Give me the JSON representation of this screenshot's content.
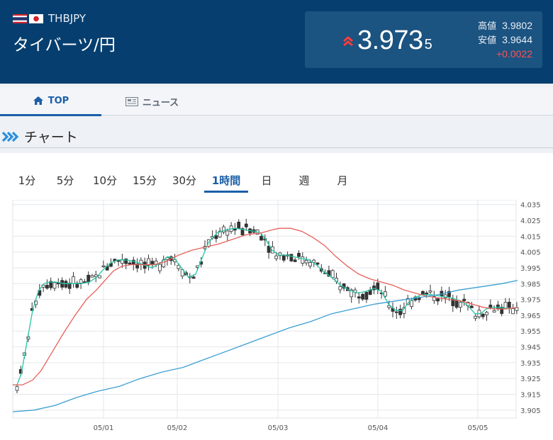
{
  "header": {
    "pair_code": "THBJPY",
    "pair_name": "タイバーツ/円",
    "price_main": "3.973",
    "price_sub": "5",
    "high_label": "高値",
    "high_value": "3.9802",
    "low_label": "安値",
    "low_value": "3.9644",
    "change": "+0.0022",
    "change_color": "#ff5252",
    "up_icon": "double-chevron-up-icon"
  },
  "tabs": [
    {
      "label": "TOP",
      "icon": "home-icon",
      "active": true
    },
    {
      "label": "ニュース",
      "icon": "newspaper-icon",
      "active": false
    }
  ],
  "section": {
    "title": "チャート",
    "icon": "double-chevron-right-icon"
  },
  "periods": [
    "1分",
    "5分",
    "10分",
    "15分",
    "30分",
    "1時間",
    "日",
    "週",
    "月"
  ],
  "active_period": "1時間",
  "chart_data": {
    "type": "candlestick",
    "ylim": [
      3.9,
      4.038
    ],
    "y_ticks": [
      "4.035",
      "4.025",
      "4.015",
      "4.005",
      "3.995",
      "3.985",
      "3.975",
      "3.965",
      "3.955",
      "3.945",
      "3.935",
      "3.925",
      "3.915",
      "3.905"
    ],
    "x_ticks": [
      "05/01",
      "05/02",
      "05/03",
      "05/04",
      "05/05"
    ],
    "ma_colors": {
      "short": "#26c6a6",
      "mid": "#e8605a",
      "long": "#3a9fd0"
    },
    "series": [
      {
        "name": "short",
        "points": [
          [
            0,
            3.921
          ],
          [
            6,
            3.921
          ],
          [
            12,
            3.928
          ],
          [
            20,
            3.948
          ],
          [
            28,
            3.968
          ],
          [
            36,
            3.98
          ],
          [
            44,
            3.985
          ],
          [
            52,
            3.986
          ],
          [
            62,
            3.986
          ],
          [
            72,
            3.985
          ],
          [
            84,
            3.985
          ],
          [
            96,
            3.985
          ],
          [
            108,
            3.986
          ],
          [
            118,
            3.989
          ],
          [
            128,
            3.994
          ],
          [
            138,
            3.998
          ],
          [
            148,
            4.0
          ],
          [
            160,
            4.0
          ],
          [
            172,
            3.999
          ],
          [
            184,
            3.997
          ],
          [
            196,
            3.995
          ],
          [
            208,
            3.998
          ],
          [
            218,
            4.002
          ],
          [
            228,
            4.001
          ],
          [
            238,
            3.995
          ],
          [
            248,
            3.989
          ],
          [
            258,
            3.991
          ],
          [
            266,
            4.0
          ],
          [
            276,
            4.011
          ],
          [
            288,
            4.017
          ],
          [
            300,
            4.019
          ],
          [
            314,
            4.02
          ],
          [
            328,
            4.019
          ],
          [
            342,
            4.018
          ],
          [
            350,
            4.017
          ],
          [
            358,
            4.012
          ],
          [
            366,
            4.006
          ],
          [
            376,
            4.003
          ],
          [
            386,
            4.003
          ],
          [
            396,
            4.002
          ],
          [
            406,
            4.001
          ],
          [
            418,
            4.0
          ],
          [
            428,
            3.997
          ],
          [
            440,
            3.992
          ],
          [
            450,
            3.989
          ],
          [
            462,
            3.984
          ],
          [
            474,
            3.981
          ],
          [
            486,
            3.979
          ],
          [
            498,
            3.98
          ],
          [
            510,
            3.982
          ],
          [
            520,
            3.98
          ],
          [
            530,
            3.972
          ],
          [
            540,
            3.968
          ],
          [
            550,
            3.968
          ],
          [
            558,
            3.973
          ],
          [
            566,
            3.976
          ],
          [
            576,
            3.978
          ],
          [
            590,
            3.978
          ],
          [
            604,
            3.977
          ],
          [
            618,
            3.976
          ],
          [
            632,
            3.974
          ],
          [
            642,
            3.971
          ],
          [
            652,
            3.966
          ],
          [
            660,
            3.966
          ],
          [
            668,
            3.969
          ],
          [
            678,
            3.97
          ],
          [
            690,
            3.97
          ],
          [
            700,
            3.969
          ],
          [
            712,
            3.97
          ]
        ]
      },
      {
        "name": "mid",
        "points": [
          [
            0,
            3.921
          ],
          [
            14,
            3.921
          ],
          [
            28,
            3.924
          ],
          [
            40,
            3.93
          ],
          [
            56,
            3.942
          ],
          [
            72,
            3.954
          ],
          [
            88,
            3.965
          ],
          [
            104,
            3.975
          ],
          [
            118,
            3.981
          ],
          [
            130,
            3.987
          ],
          [
            142,
            3.993
          ],
          [
            154,
            3.996
          ],
          [
            168,
            3.997
          ],
          [
            184,
            3.997
          ],
          [
            200,
            3.997
          ],
          [
            216,
            3.999
          ],
          [
            234,
            4.003
          ],
          [
            252,
            4.006
          ],
          [
            270,
            4.008
          ],
          [
            290,
            4.01
          ],
          [
            310,
            4.013
          ],
          [
            330,
            4.016
          ],
          [
            350,
            4.017
          ],
          [
            366,
            4.019
          ],
          [
            376,
            4.02
          ],
          [
            392,
            4.02
          ],
          [
            408,
            4.018
          ],
          [
            424,
            4.014
          ],
          [
            440,
            4.009
          ],
          [
            456,
            4.002
          ],
          [
            472,
            3.996
          ],
          [
            488,
            3.991
          ],
          [
            504,
            3.988
          ],
          [
            520,
            3.986
          ],
          [
            536,
            3.984
          ],
          [
            552,
            3.981
          ],
          [
            568,
            3.979
          ],
          [
            584,
            3.977
          ],
          [
            600,
            3.976
          ],
          [
            616,
            3.975
          ],
          [
            632,
            3.974
          ],
          [
            648,
            3.972
          ],
          [
            664,
            3.97
          ],
          [
            680,
            3.969
          ],
          [
            696,
            3.969
          ],
          [
            712,
            3.97
          ]
        ]
      },
      {
        "name": "long",
        "points": [
          [
            0,
            3.904
          ],
          [
            30,
            3.905
          ],
          [
            60,
            3.908
          ],
          [
            90,
            3.913
          ],
          [
            120,
            3.917
          ],
          [
            150,
            3.92
          ],
          [
            180,
            3.925
          ],
          [
            210,
            3.929
          ],
          [
            240,
            3.932
          ],
          [
            270,
            3.937
          ],
          [
            300,
            3.942
          ],
          [
            330,
            3.947
          ],
          [
            360,
            3.952
          ],
          [
            390,
            3.957
          ],
          [
            420,
            3.961
          ],
          [
            450,
            3.966
          ],
          [
            480,
            3.969
          ],
          [
            510,
            3.972
          ],
          [
            540,
            3.974
          ],
          [
            570,
            3.976
          ],
          [
            600,
            3.978
          ],
          [
            630,
            3.981
          ],
          [
            660,
            3.983
          ],
          [
            690,
            3.985
          ],
          [
            712,
            3.987
          ]
        ]
      }
    ]
  }
}
